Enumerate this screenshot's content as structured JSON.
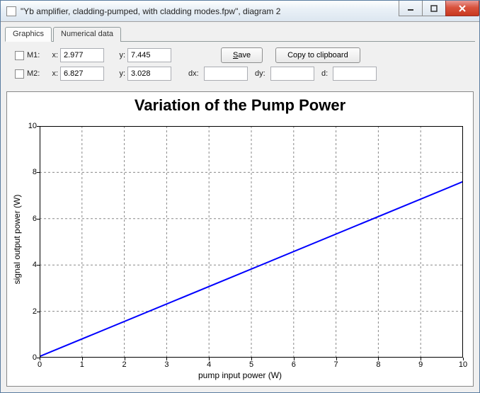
{
  "window": {
    "title": "\"Yb amplifier, cladding-pumped, with cladding modes.fpw\", diagram 2"
  },
  "tabs": {
    "graphics": "Graphics",
    "numerical": "Numerical data",
    "active": 0
  },
  "controls": {
    "m1": {
      "label": "M1:",
      "x_label": "x:",
      "x": "2.977",
      "y_label": "y:",
      "y": "7.445"
    },
    "m2": {
      "label": "M2:",
      "x_label": "x:",
      "x": "6.827",
      "y_label": "y:",
      "y": "3.028"
    },
    "dx_label": "dx:",
    "dx": "",
    "dy_label": "dy:",
    "dy": "",
    "d_label": "d:",
    "d": "",
    "save": "ave",
    "save_u": "S",
    "copy": "Copy to clipboard"
  },
  "chart": {
    "title": "Variation of the Pump Power",
    "title_fontsize": 22,
    "xlabel": "pump input power (W)",
    "ylabel": "signal output power (W)",
    "xlim": [
      0,
      10
    ],
    "ylim": [
      0,
      10
    ],
    "xticks": [
      0,
      1,
      2,
      3,
      4,
      5,
      6,
      7,
      8,
      9,
      10
    ],
    "yticks": [
      0,
      2,
      4,
      6,
      8,
      10
    ],
    "line_color": "#0000ff",
    "grid_color": "#999999",
    "background_color": "#ffffff",
    "data": {
      "x": [
        0,
        10
      ],
      "y": [
        0.05,
        7.6
      ]
    }
  }
}
